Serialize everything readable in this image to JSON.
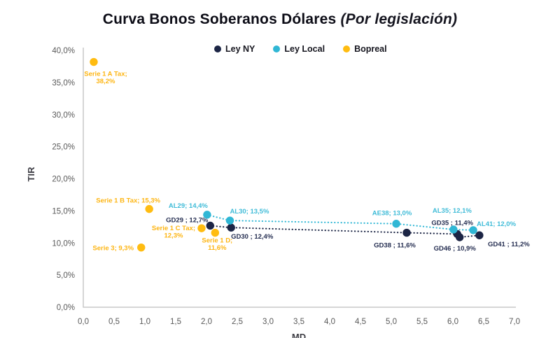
{
  "title": {
    "main": "Curva Bonos Soberanos Dólares",
    "suffix": " (Por legislación)"
  },
  "colors": {
    "ley_ny": "#1c2545",
    "ley_local": "#30b7d5",
    "bopreal": "#ffbc11",
    "axis_line": "#c9c9c9",
    "tick_text": "#595959",
    "axis_title_text": "#3f3f46"
  },
  "axes": {
    "y_label": "TIR",
    "x_label": "MD",
    "y_ticks": [
      {
        "v": 0,
        "t": "0,0%"
      },
      {
        "v": 5,
        "t": "5,0%"
      },
      {
        "v": 10,
        "t": "10,0%"
      },
      {
        "v": 15,
        "t": "15,0%"
      },
      {
        "v": 20,
        "t": "20,0%"
      },
      {
        "v": 25,
        "t": "25,0%"
      },
      {
        "v": 30,
        "t": "30,0%"
      },
      {
        "v": 35,
        "t": "35,0%"
      },
      {
        "v": 40,
        "t": "40,0%"
      }
    ],
    "x_ticks": [
      {
        "v": 0,
        "t": "0,0"
      },
      {
        "v": 0.5,
        "t": "0,5"
      },
      {
        "v": 1,
        "t": "1,0"
      },
      {
        "v": 1.5,
        "t": "1,5"
      },
      {
        "v": 2,
        "t": "2,0"
      },
      {
        "v": 2.5,
        "t": "2,5"
      },
      {
        "v": 3,
        "t": "3,0"
      },
      {
        "v": 3.5,
        "t": "3,5"
      },
      {
        "v": 4,
        "t": "4,0"
      },
      {
        "v": 4.5,
        "t": "4,5"
      },
      {
        "v": 5,
        "t": "5,0"
      },
      {
        "v": 5.5,
        "t": "5,5"
      },
      {
        "v": 6,
        "t": "6,0"
      },
      {
        "v": 6.5,
        "t": "6,5"
      },
      {
        "v": 7,
        "t": "7,0"
      }
    ]
  },
  "chart_data": {
    "type": "scatter",
    "title": "Curva Bonos Soberanos Dólares (Por legislación)",
    "xlabel": "MD",
    "ylabel": "TIR",
    "xlim": [
      0,
      7
    ],
    "ylim": [
      0,
      40
    ],
    "grid": false,
    "legend_position": "top",
    "series": [
      {
        "name": "Ley NY",
        "color": "#1c2545",
        "label_color": "#262f52",
        "line": "dotted",
        "points": [
          {
            "name": "GD29",
            "x": 2.06,
            "y": 12.7,
            "label_lines": [
              "GD29 ; 12,7%"
            ],
            "label_dx": -33,
            "label_dy": -5
          },
          {
            "name": "GD30",
            "x": 2.4,
            "y": 12.4,
            "label_lines": [
              "GD30 ; 12,4%"
            ],
            "label_dx": 30,
            "label_dy": 16
          },
          {
            "name": "GD38",
            "x": 5.25,
            "y": 11.6,
            "label_lines": [
              "GD38 ; 11,6%"
            ],
            "label_dx": -17,
            "label_dy": 21
          },
          {
            "name": "GD35",
            "x": 6.07,
            "y": 11.4,
            "label_lines": [
              "GD35 ; 11,4%"
            ],
            "label_dx": -7,
            "label_dy": -13
          },
          {
            "name": "GD46",
            "x": 6.11,
            "y": 10.9,
            "label_lines": [
              "GD46 ; 10,9%"
            ],
            "label_dx": -7,
            "label_dy": 19
          },
          {
            "name": "GD41",
            "x": 6.43,
            "y": 11.2,
            "label_lines": [
              "GD41 ; 11,2%"
            ],
            "label_dx": 42,
            "label_dy": 16
          }
        ]
      },
      {
        "name": "Ley Local",
        "color": "#30b7d5",
        "label_color": "#41bcd8",
        "line": "dotted",
        "points": [
          {
            "name": "AL29",
            "x": 2.01,
            "y": 14.4,
            "label_lines": [
              "AL29; 14,4%"
            ],
            "label_dx": -27,
            "label_dy": -10
          },
          {
            "name": "AL30",
            "x": 2.38,
            "y": 13.5,
            "label_lines": [
              "AL30; 13,5%"
            ],
            "label_dx": 28,
            "label_dy": -10
          },
          {
            "name": "AE38",
            "x": 5.08,
            "y": 13.0,
            "label_lines": [
              "AE38; 13,0%"
            ],
            "label_dx": -6,
            "label_dy": -12
          },
          {
            "name": "AL35",
            "x": 6.01,
            "y": 12.1,
            "label_lines": [
              "AL35; 12,1%"
            ],
            "label_dx": -2,
            "label_dy": -24
          },
          {
            "name": "AL41",
            "x": 6.33,
            "y": 12.0,
            "label_lines": [
              "AL41; 12,0%"
            ],
            "label_dx": 33,
            "label_dy": -6
          }
        ]
      },
      {
        "name": "Bopreal",
        "color": "#ffbc11",
        "label_color": "#fdb513",
        "line": "none",
        "points": [
          {
            "name": "Serie 1 A Tax",
            "x": 0.17,
            "y": 38.2,
            "label_lines": [
              "Serie 1 A Tax;",
              "38,2%"
            ],
            "label_dx": 17,
            "label_dy": 20
          },
          {
            "name": "Serie 3",
            "x": 0.94,
            "y": 9.3,
            "label_lines": [
              "Serie 3; 9,3%"
            ],
            "label_dx": -40,
            "label_dy": 4
          },
          {
            "name": "Serie 1 B Tax",
            "x": 1.07,
            "y": 15.3,
            "label_lines": [
              "Serie 1 B Tax; 15,3%"
            ],
            "label_dx": -30,
            "label_dy": -9
          },
          {
            "name": "Serie 1 C Tax",
            "x": 1.92,
            "y": 12.3,
            "label_lines": [
              "Serie 1 C Tax;",
              "12,3%"
            ],
            "label_dx": -40,
            "label_dy": 3
          },
          {
            "name": "Serie 1 D",
            "x": 2.14,
            "y": 11.6,
            "label_lines": [
              "Serie 1 D;",
              "11,6%"
            ],
            "label_dx": 3,
            "label_dy": 14
          }
        ]
      }
    ]
  }
}
